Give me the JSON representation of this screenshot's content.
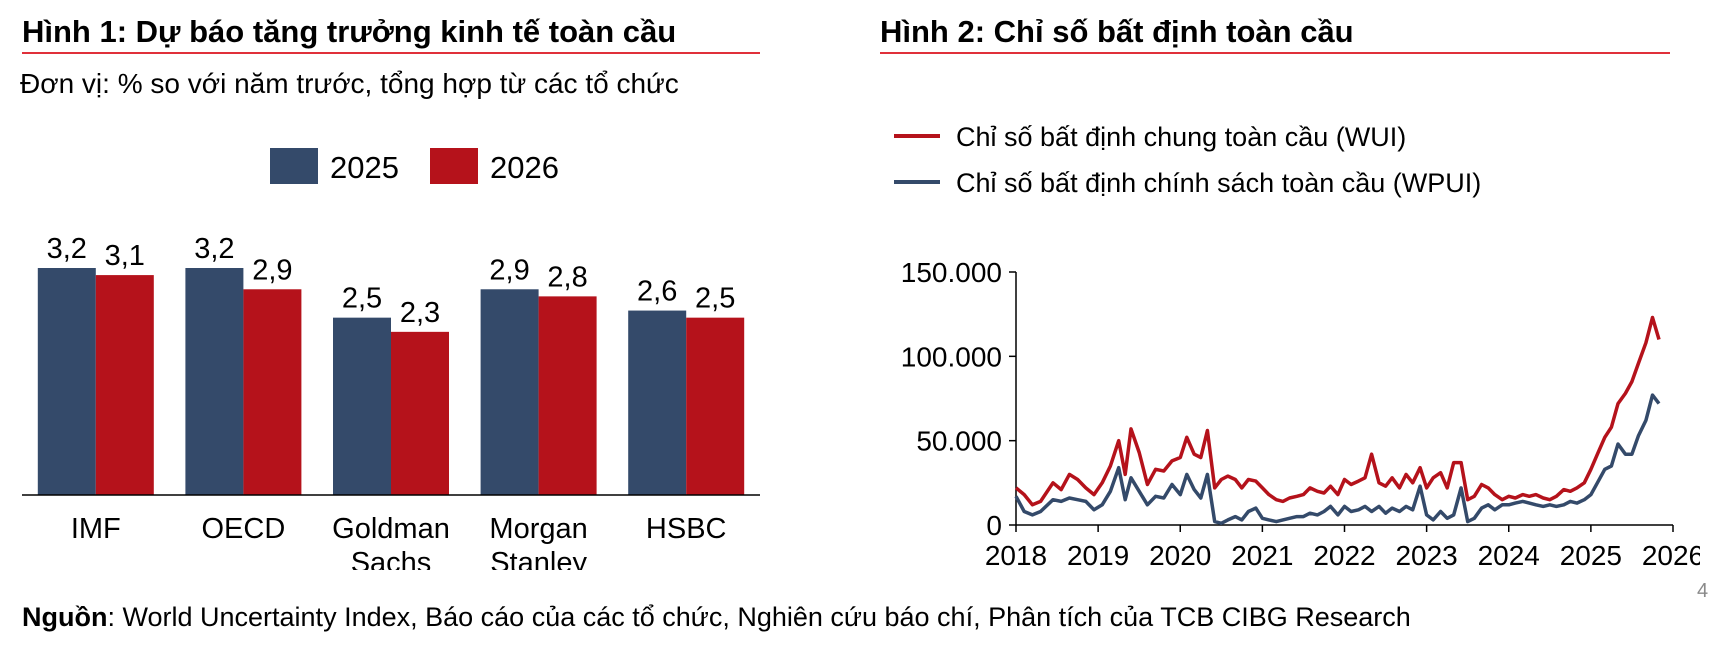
{
  "left_panel": {
    "title": "Hình 1: Dự báo tăng trưởng kinh tế toàn cầu",
    "subtitle": "Đơn vị: % so với năm trước, tổng hợp từ các tổ chức"
  },
  "right_panel": {
    "title": "Hình 2: Chỉ số bất định toàn cầu"
  },
  "colors": {
    "series_2025": "#344a6a",
    "series_2026": "#b5121b",
    "wui_line": "#b5121b",
    "wpui_line": "#344a6a",
    "title_rule": "#e0303a"
  },
  "chart_data": [
    {
      "type": "bar",
      "categories": [
        "IMF",
        "OECD",
        "Goldman Sachs",
        "Morgan Stanley",
        "HSBC"
      ],
      "series": [
        {
          "name": "2025",
          "values": [
            3.2,
            3.2,
            2.5,
            2.9,
            2.6
          ]
        },
        {
          "name": "2026",
          "values": [
            3.1,
            2.9,
            2.3,
            2.8,
            2.5
          ]
        }
      ],
      "data_labels": {
        "2025": [
          "3,2",
          "3,2",
          "2,5",
          "2,9",
          "2,6"
        ],
        "2026": [
          "3,1",
          "2,9",
          "2,3",
          "2,8",
          "2,5"
        ]
      },
      "ylim": [
        0,
        3.4
      ],
      "legend_position": "top-center",
      "grid": false
    },
    {
      "type": "line",
      "legend_position": "top-left",
      "grid": false,
      "xlim": [
        2018,
        2026
      ],
      "ylim": [
        0,
        150000
      ],
      "x_ticks": [
        2018,
        2019,
        2020,
        2021,
        2022,
        2023,
        2024,
        2025,
        2026
      ],
      "x_tick_labels": [
        "2018",
        "2019",
        "2020",
        "2021",
        "2022",
        "2023",
        "2024",
        "2025",
        "2026"
      ],
      "y_ticks": [
        0,
        50000,
        100000,
        150000
      ],
      "y_tick_labels": [
        "0",
        "50.000",
        "100.000",
        "150.000"
      ],
      "series": [
        {
          "name": "Chỉ số bất định chung toàn cầu (WUI)",
          "points": [
            [
              2018.0,
              22000
            ],
            [
              2018.1,
              18000
            ],
            [
              2018.2,
              12000
            ],
            [
              2018.3,
              14000
            ],
            [
              2018.45,
              25000
            ],
            [
              2018.55,
              21000
            ],
            [
              2018.65,
              30000
            ],
            [
              2018.75,
              27000
            ],
            [
              2018.85,
              22000
            ],
            [
              2018.95,
              18000
            ],
            [
              2019.05,
              25000
            ],
            [
              2019.15,
              35000
            ],
            [
              2019.25,
              50000
            ],
            [
              2019.33,
              30000
            ],
            [
              2019.4,
              57000
            ],
            [
              2019.5,
              43000
            ],
            [
              2019.6,
              24000
            ],
            [
              2019.7,
              33000
            ],
            [
              2019.8,
              32000
            ],
            [
              2019.9,
              38000
            ],
            [
              2020.0,
              40000
            ],
            [
              2020.08,
              52000
            ],
            [
              2020.17,
              42000
            ],
            [
              2020.25,
              40000
            ],
            [
              2020.33,
              56000
            ],
            [
              2020.42,
              22000
            ],
            [
              2020.5,
              27000
            ],
            [
              2020.58,
              29000
            ],
            [
              2020.67,
              27000
            ],
            [
              2020.75,
              22000
            ],
            [
              2020.83,
              27000
            ],
            [
              2020.92,
              26000
            ],
            [
              2021.0,
              22000
            ],
            [
              2021.08,
              18000
            ],
            [
              2021.17,
              15000
            ],
            [
              2021.25,
              14000
            ],
            [
              2021.33,
              16000
            ],
            [
              2021.42,
              17000
            ],
            [
              2021.5,
              18000
            ],
            [
              2021.58,
              22000
            ],
            [
              2021.67,
              20000
            ],
            [
              2021.75,
              19000
            ],
            [
              2021.83,
              23000
            ],
            [
              2021.92,
              18000
            ],
            [
              2022.0,
              27000
            ],
            [
              2022.08,
              24000
            ],
            [
              2022.17,
              26000
            ],
            [
              2022.25,
              28000
            ],
            [
              2022.33,
              42000
            ],
            [
              2022.42,
              25000
            ],
            [
              2022.5,
              23000
            ],
            [
              2022.58,
              28000
            ],
            [
              2022.67,
              22000
            ],
            [
              2022.75,
              30000
            ],
            [
              2022.83,
              25000
            ],
            [
              2022.92,
              34000
            ],
            [
              2023.0,
              22000
            ],
            [
              2023.08,
              28000
            ],
            [
              2023.17,
              31000
            ],
            [
              2023.25,
              22000
            ],
            [
              2023.33,
              37000
            ],
            [
              2023.42,
              37000
            ],
            [
              2023.5,
              15000
            ],
            [
              2023.58,
              17000
            ],
            [
              2023.67,
              24000
            ],
            [
              2023.75,
              22000
            ],
            [
              2023.83,
              18000
            ],
            [
              2023.92,
              15000
            ],
            [
              2024.0,
              17000
            ],
            [
              2024.08,
              16000
            ],
            [
              2024.17,
              18000
            ],
            [
              2024.25,
              17000
            ],
            [
              2024.33,
              18000
            ],
            [
              2024.42,
              16000
            ],
            [
              2024.5,
              15000
            ],
            [
              2024.58,
              17000
            ],
            [
              2024.67,
              21000
            ],
            [
              2024.75,
              20000
            ],
            [
              2024.83,
              22000
            ],
            [
              2024.92,
              25000
            ],
            [
              2025.0,
              33000
            ],
            [
              2025.08,
              42000
            ],
            [
              2025.17,
              52000
            ],
            [
              2025.25,
              58000
            ],
            [
              2025.33,
              72000
            ],
            [
              2025.42,
              78000
            ],
            [
              2025.5,
              85000
            ],
            [
              2025.58,
              96000
            ],
            [
              2025.67,
              108000
            ],
            [
              2025.75,
              123000
            ],
            [
              2025.83,
              110000
            ]
          ]
        },
        {
          "name": "Chỉ số bất định chính sách toàn cầu (WPUI)",
          "points": [
            [
              2018.0,
              17000
            ],
            [
              2018.1,
              8000
            ],
            [
              2018.2,
              6000
            ],
            [
              2018.3,
              8000
            ],
            [
              2018.45,
              15000
            ],
            [
              2018.55,
              14000
            ],
            [
              2018.65,
              16000
            ],
            [
              2018.75,
              15000
            ],
            [
              2018.85,
              14000
            ],
            [
              2018.95,
              9000
            ],
            [
              2019.05,
              12000
            ],
            [
              2019.15,
              20000
            ],
            [
              2019.25,
              34000
            ],
            [
              2019.33,
              15000
            ],
            [
              2019.4,
              28000
            ],
            [
              2019.5,
              20000
            ],
            [
              2019.6,
              12000
            ],
            [
              2019.7,
              17000
            ],
            [
              2019.8,
              16000
            ],
            [
              2019.9,
              24000
            ],
            [
              2020.0,
              18000
            ],
            [
              2020.08,
              30000
            ],
            [
              2020.17,
              21000
            ],
            [
              2020.25,
              16000
            ],
            [
              2020.33,
              30000
            ],
            [
              2020.42,
              2000
            ],
            [
              2020.5,
              1000
            ],
            [
              2020.58,
              3000
            ],
            [
              2020.67,
              5000
            ],
            [
              2020.75,
              3000
            ],
            [
              2020.83,
              8000
            ],
            [
              2020.92,
              10000
            ],
            [
              2021.0,
              4000
            ],
            [
              2021.08,
              3000
            ],
            [
              2021.17,
              2000
            ],
            [
              2021.25,
              3000
            ],
            [
              2021.33,
              4000
            ],
            [
              2021.42,
              5000
            ],
            [
              2021.5,
              5000
            ],
            [
              2021.58,
              7000
            ],
            [
              2021.67,
              6000
            ],
            [
              2021.75,
              8000
            ],
            [
              2021.83,
              11000
            ],
            [
              2021.92,
              6000
            ],
            [
              2022.0,
              11000
            ],
            [
              2022.08,
              8000
            ],
            [
              2022.17,
              9000
            ],
            [
              2022.25,
              11000
            ],
            [
              2022.33,
              8000
            ],
            [
              2022.42,
              11000
            ],
            [
              2022.5,
              7000
            ],
            [
              2022.58,
              10000
            ],
            [
              2022.67,
              8000
            ],
            [
              2022.75,
              11000
            ],
            [
              2022.83,
              9000
            ],
            [
              2022.92,
              23000
            ],
            [
              2023.0,
              6000
            ],
            [
              2023.08,
              3000
            ],
            [
              2023.17,
              8000
            ],
            [
              2023.25,
              4000
            ],
            [
              2023.33,
              6000
            ],
            [
              2023.42,
              22000
            ],
            [
              2023.5,
              2000
            ],
            [
              2023.58,
              4000
            ],
            [
              2023.67,
              10000
            ],
            [
              2023.75,
              12000
            ],
            [
              2023.83,
              9000
            ],
            [
              2023.92,
              12000
            ],
            [
              2024.0,
              12000
            ],
            [
              2024.08,
              13000
            ],
            [
              2024.17,
              14000
            ],
            [
              2024.25,
              13000
            ],
            [
              2024.33,
              12000
            ],
            [
              2024.42,
              11000
            ],
            [
              2024.5,
              12000
            ],
            [
              2024.58,
              11000
            ],
            [
              2024.67,
              12000
            ],
            [
              2024.75,
              14000
            ],
            [
              2024.83,
              13000
            ],
            [
              2024.92,
              15000
            ],
            [
              2025.0,
              18000
            ],
            [
              2025.08,
              25000
            ],
            [
              2025.17,
              33000
            ],
            [
              2025.25,
              35000
            ],
            [
              2025.33,
              48000
            ],
            [
              2025.42,
              42000
            ],
            [
              2025.5,
              42000
            ],
            [
              2025.58,
              53000
            ],
            [
              2025.67,
              62000
            ],
            [
              2025.75,
              77000
            ],
            [
              2025.83,
              72000
            ]
          ]
        }
      ]
    }
  ],
  "source": {
    "label": "Nguồn",
    "text": ": World Uncertainty Index, Báo cáo của các tổ chức, Nghiên cứu báo chí, Phân tích của TCB CIBG Research"
  },
  "page_number": "4"
}
